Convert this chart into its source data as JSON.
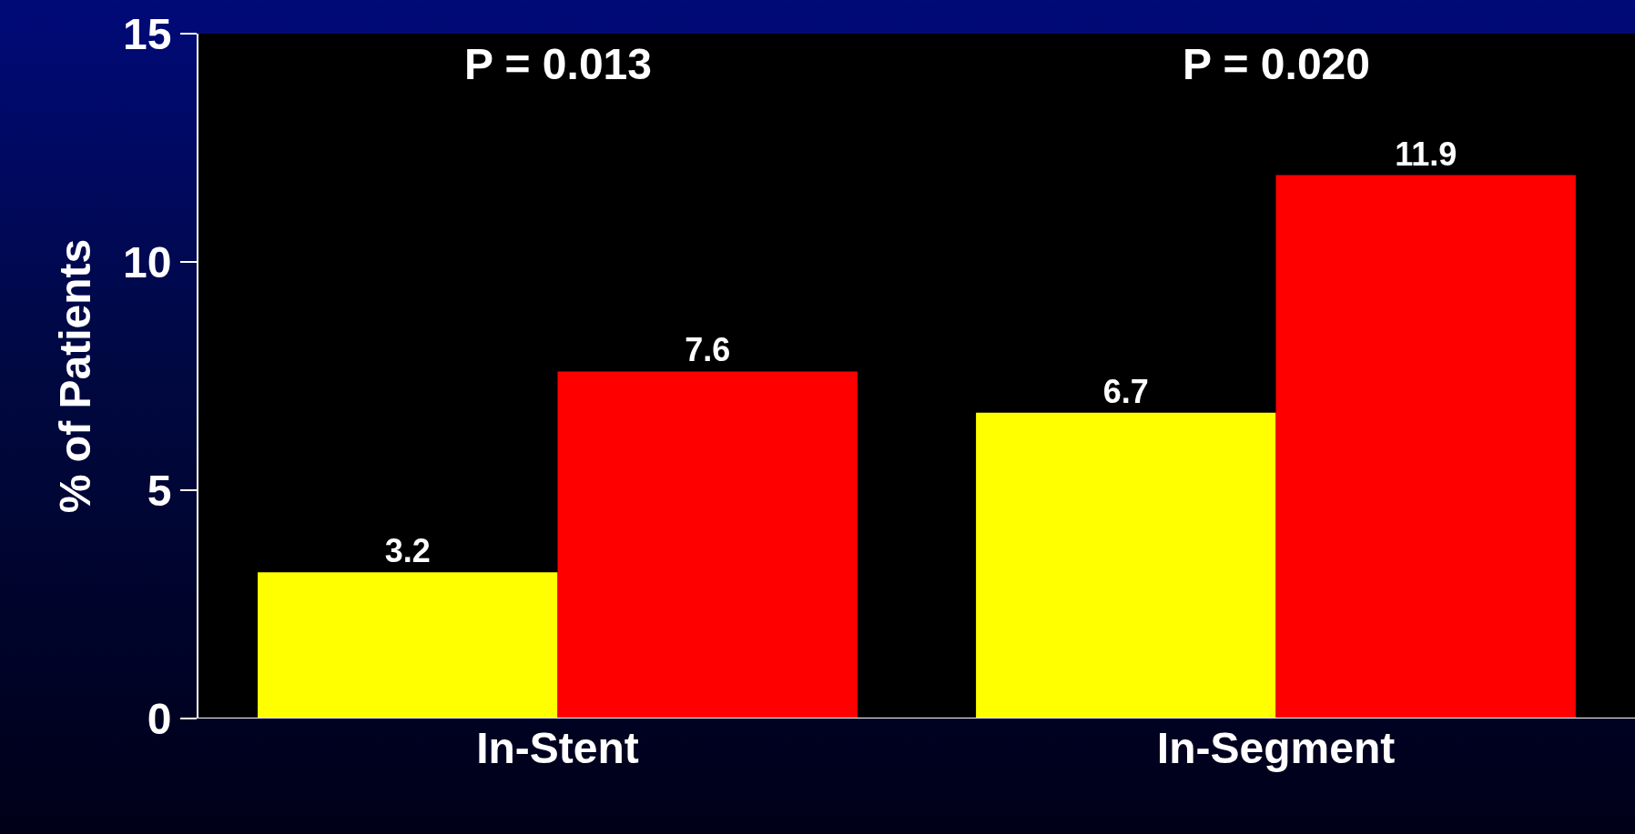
{
  "chart_data": {
    "type": "bar",
    "ylabel": "% of Patients",
    "categories": [
      "In-Stent",
      "In-Segment"
    ],
    "series": [
      {
        "color": "#ffff00",
        "values": [
          3.2,
          6.7
        ]
      },
      {
        "color": "#ff0000",
        "values": [
          7.6,
          11.9
        ]
      }
    ],
    "ylim": [
      0,
      15
    ],
    "yticks": [
      0,
      5,
      10,
      15
    ],
    "grid": false,
    "data_labels": true,
    "annotations": [
      "P = 0.013",
      "P = 0.020"
    ]
  }
}
